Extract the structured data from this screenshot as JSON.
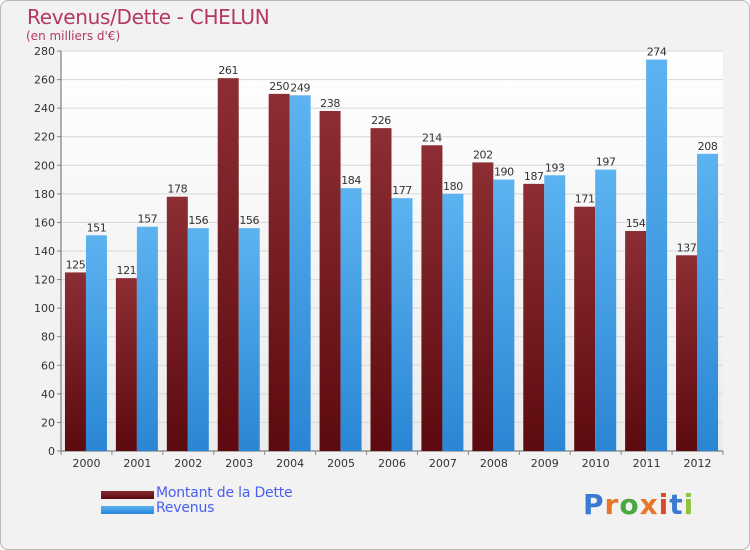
{
  "header": {
    "title": "Revenus/Dette - CHELUN",
    "subtitle": "(en milliers d'€)"
  },
  "chart_data": {
    "type": "bar",
    "title": "Revenus/Dette - CHELUN",
    "subtitle": "(en milliers d'€)",
    "xlabel": "",
    "ylabel": "",
    "categories": [
      "2000",
      "2001",
      "2002",
      "2003",
      "2004",
      "2005",
      "2006",
      "2007",
      "2008",
      "2009",
      "2010",
      "2011",
      "2012"
    ],
    "series": [
      {
        "name": "Montant de la Dette",
        "color": "#7b1c21",
        "values": [
          125,
          121,
          178,
          261,
          250,
          238,
          226,
          214,
          202,
          187,
          171,
          154,
          137
        ]
      },
      {
        "name": "Revenus",
        "color": "#3d9be5",
        "values": [
          151,
          157,
          156,
          156,
          249,
          184,
          177,
          180,
          190,
          193,
          197,
          274,
          208
        ]
      }
    ],
    "ylim": [
      0,
      280
    ],
    "yticks": [
      0,
      20,
      40,
      60,
      80,
      100,
      120,
      140,
      160,
      180,
      200,
      220,
      240,
      260,
      280
    ],
    "grid": true,
    "legend_position": "bottom-left"
  },
  "legend": {
    "items": [
      {
        "label": "Montant de la Dette",
        "color": "#6a0a10"
      },
      {
        "label": "Revenus",
        "color": "#3d9be5"
      }
    ]
  },
  "logo": {
    "letters": [
      "P",
      "r",
      "o",
      "x",
      "i",
      "t",
      "i"
    ],
    "colors": [
      "#3a7ad0",
      "#e8762a",
      "#4aa83e",
      "#e8762a",
      "#d94a2a",
      "#3a7ad0",
      "#8ec43a"
    ]
  }
}
